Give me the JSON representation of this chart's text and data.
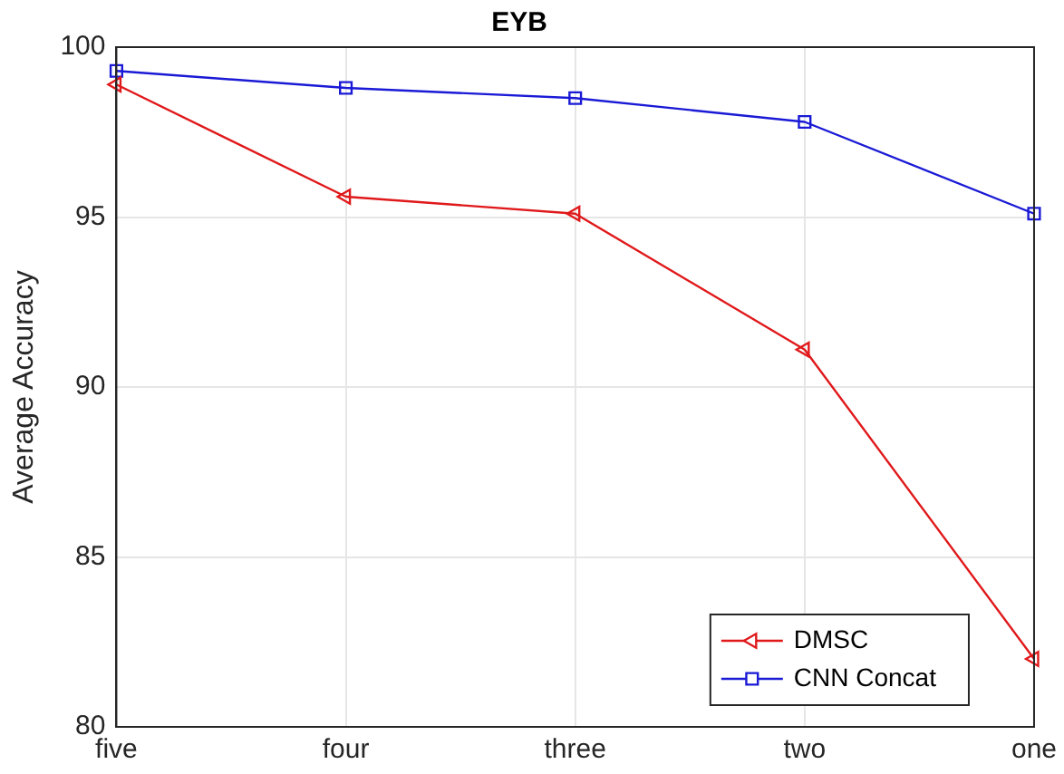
{
  "chart_data": {
    "type": "line",
    "title": "EYB",
    "ylabel": "Average Accuracy",
    "categories": [
      "five",
      "four",
      "three",
      "two",
      "one"
    ],
    "series": [
      {
        "name": "DMSC",
        "color": "#e0191b",
        "marker": "triangle-left",
        "values": [
          98.9,
          95.6,
          95.1,
          91.1,
          82.0
        ]
      },
      {
        "name": "CNN Concat",
        "color": "#1a1ad6",
        "marker": "square",
        "values": [
          99.3,
          98.8,
          98.5,
          97.8,
          95.1
        ]
      }
    ],
    "ylim": [
      80,
      100
    ],
    "yticks": [
      80,
      85,
      90,
      95,
      100
    ],
    "grid": true,
    "legend": "bottom right",
    "line_style": "solid"
  }
}
